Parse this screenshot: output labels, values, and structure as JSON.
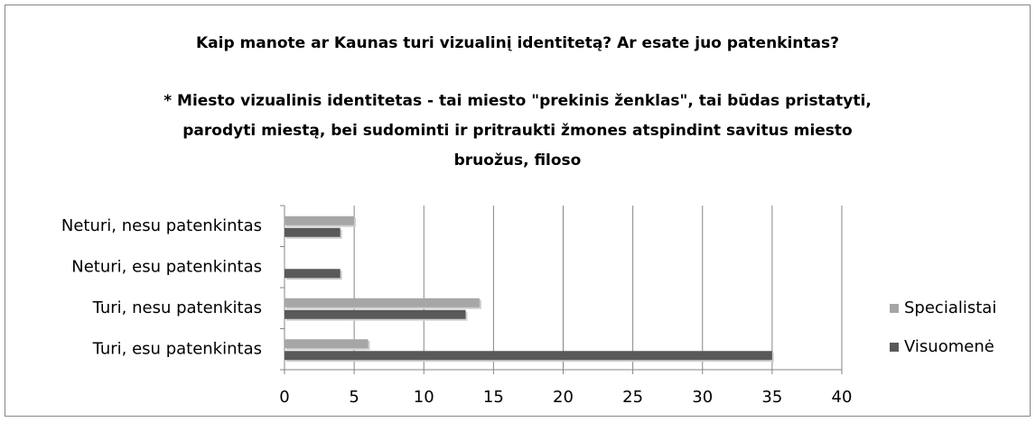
{
  "chart_data": {
    "type": "hbar",
    "title": "Kaip manote ar Kaunas turi vizualinį identitetą? Ar esate juo patenkintas?",
    "subtitle": [
      "* Miesto vizualinis identitetas - tai miesto \"prekinis ženklas\", tai būdas pristatyti,",
      "parodyti miestą, bei sudominti ir pritraukti žmones atspindint savitus miesto",
      "bruožus, filoso"
    ],
    "categories": [
      "Turi, esu patenkintas",
      "Turi, nesu patenkitas",
      "Neturi, esu patenkintas",
      "Neturi, nesu patenkintas"
    ],
    "series": [
      {
        "name": "Specialistai",
        "color": "#a6a6a6",
        "values": [
          6,
          14,
          0,
          5
        ]
      },
      {
        "name": "Visuomenė",
        "color": "#595959",
        "values": [
          35,
          13,
          4,
          4
        ]
      }
    ],
    "xlim": [
      0,
      40
    ],
    "xticks": [
      0,
      5,
      10,
      15,
      20,
      25,
      30,
      35,
      40
    ],
    "grid": true,
    "legend": "right"
  }
}
